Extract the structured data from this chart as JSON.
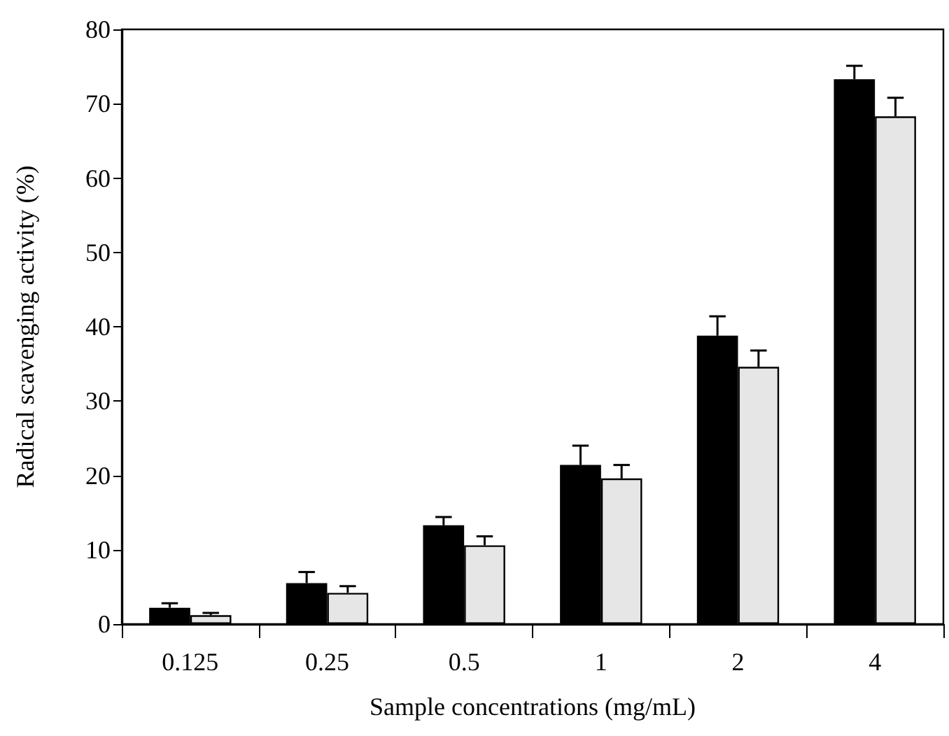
{
  "chart_data": {
    "type": "bar",
    "xlabel": "Sample concentrations (mg/mL)",
    "ylabel": "Radical scavenging activity (%)",
    "categories": [
      "0.125",
      "0.25",
      "0.5",
      "1",
      "2",
      "4"
    ],
    "series": [
      {
        "color": "#000000",
        "values": [
          2.2,
          5.5,
          13.3,
          21.4,
          38.8,
          73.3
        ],
        "errors": [
          0.6,
          1.5,
          1.1,
          2.6,
          2.6,
          1.8
        ]
      },
      {
        "color": "#e6e6e6",
        "values": [
          1.2,
          4.2,
          10.6,
          19.6,
          34.6,
          68.3
        ],
        "errors": [
          0.3,
          0.9,
          1.2,
          1.8,
          2.2,
          2.5
        ]
      }
    ],
    "ylim": [
      0,
      80
    ],
    "yticks": [
      0,
      10,
      20,
      30,
      40,
      50,
      60,
      70,
      80
    ],
    "grid": false
  }
}
